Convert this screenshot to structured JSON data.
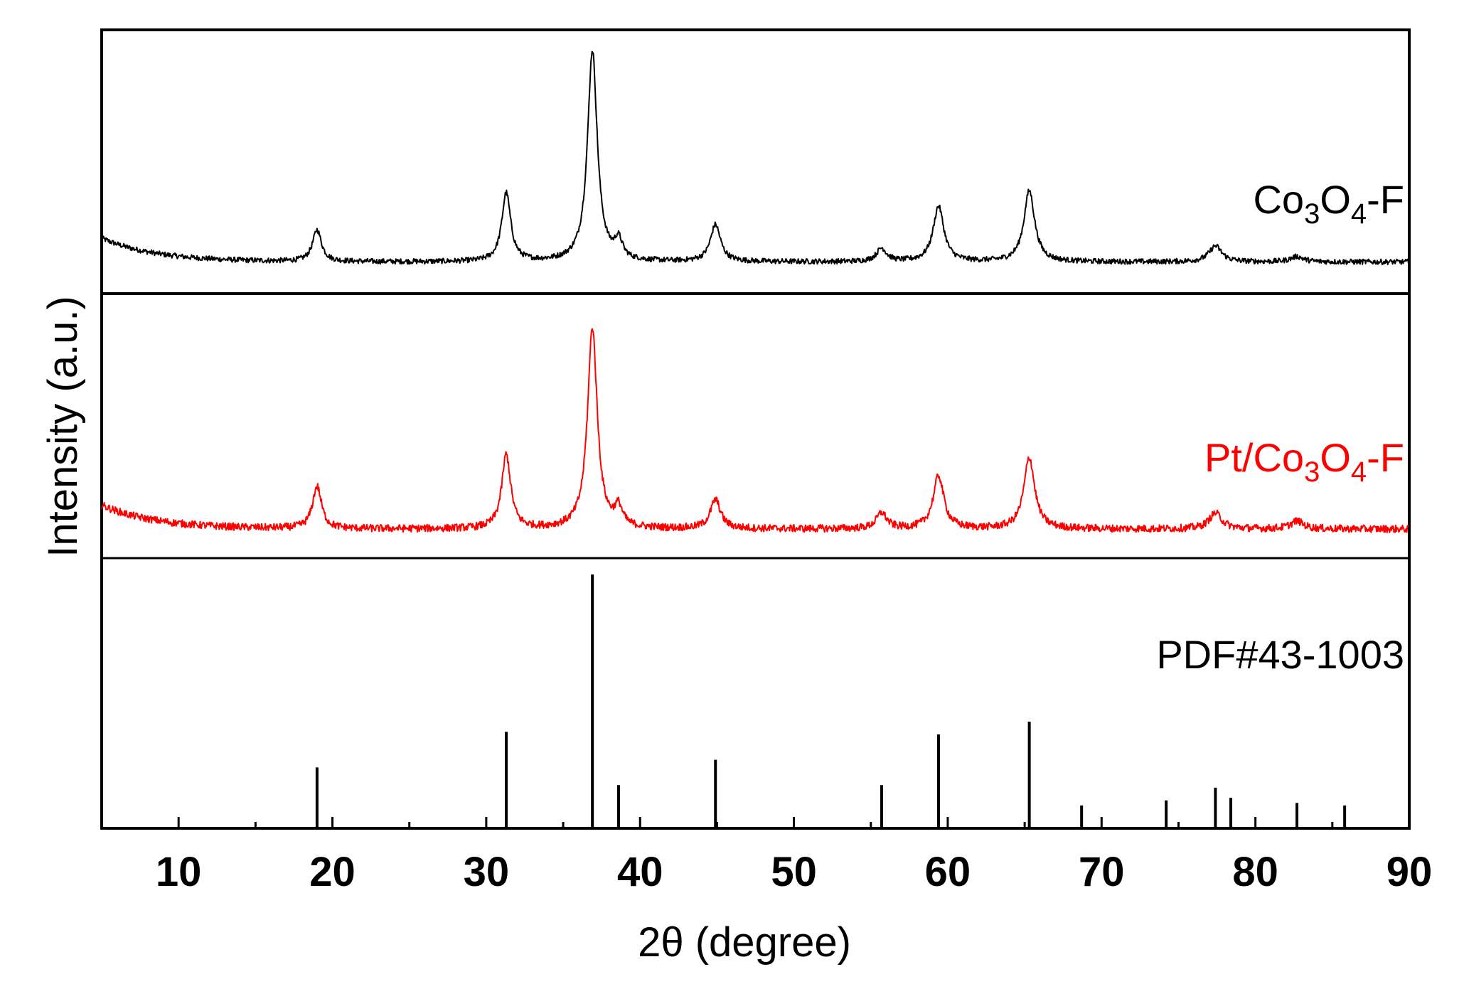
{
  "chart_data": {
    "type": "line",
    "xlabel": "2θ (degree)",
    "ylabel": "Intensity (a.u.)",
    "xlim": [
      5,
      90
    ],
    "xticks": [
      10,
      20,
      30,
      40,
      50,
      60,
      70,
      80,
      90
    ],
    "grid": false,
    "legend": "labels placed at right of each stacked panel",
    "colors": {
      "Co3O4-F": "#000000",
      "Pt/Co3O4-F": "#ff0000",
      "PDF#43-1003": "#000000"
    },
    "series": [
      {
        "name": "Co3O4-F",
        "label_parts": [
          "Co",
          "3",
          "O",
          "4",
          "-F"
        ],
        "baseline": 0.12,
        "peaks": [
          {
            "x": 19.0,
            "h": 0.12,
            "w": 0.35
          },
          {
            "x": 31.3,
            "h": 0.26,
            "w": 0.35
          },
          {
            "x": 36.9,
            "h": 0.8,
            "w": 0.38
          },
          {
            "x": 38.6,
            "h": 0.07,
            "w": 0.3
          },
          {
            "x": 44.9,
            "h": 0.14,
            "w": 0.4
          },
          {
            "x": 55.7,
            "h": 0.05,
            "w": 0.4
          },
          {
            "x": 59.4,
            "h": 0.21,
            "w": 0.42
          },
          {
            "x": 65.3,
            "h": 0.27,
            "w": 0.42
          },
          {
            "x": 77.4,
            "h": 0.06,
            "w": 0.5
          },
          {
            "x": 82.7,
            "h": 0.02,
            "w": 0.5
          }
        ]
      },
      {
        "name": "Pt/Co3O4-F",
        "label_parts": [
          "Pt/Co",
          "3",
          "O",
          "4",
          "-F"
        ],
        "baseline": 0.11,
        "peaks": [
          {
            "x": 19.0,
            "h": 0.16,
            "w": 0.35
          },
          {
            "x": 31.3,
            "h": 0.28,
            "w": 0.35
          },
          {
            "x": 36.9,
            "h": 0.76,
            "w": 0.38
          },
          {
            "x": 38.6,
            "h": 0.07,
            "w": 0.3
          },
          {
            "x": 44.9,
            "h": 0.11,
            "w": 0.4
          },
          {
            "x": 55.7,
            "h": 0.06,
            "w": 0.4
          },
          {
            "x": 59.4,
            "h": 0.2,
            "w": 0.42
          },
          {
            "x": 65.3,
            "h": 0.27,
            "w": 0.42
          },
          {
            "x": 77.4,
            "h": 0.06,
            "w": 0.5
          },
          {
            "x": 82.7,
            "h": 0.03,
            "w": 0.5
          }
        ]
      },
      {
        "name": "PDF#43-1003",
        "type": "stick",
        "x": [
          19.0,
          31.3,
          36.9,
          38.6,
          44.9,
          55.7,
          59.4,
          65.3,
          68.7,
          74.2,
          77.4,
          78.4,
          82.7,
          85.8
        ],
        "values": [
          24,
          38,
          100,
          17,
          27,
          17,
          37,
          42,
          9,
          11,
          16,
          12,
          10,
          9
        ]
      }
    ]
  }
}
